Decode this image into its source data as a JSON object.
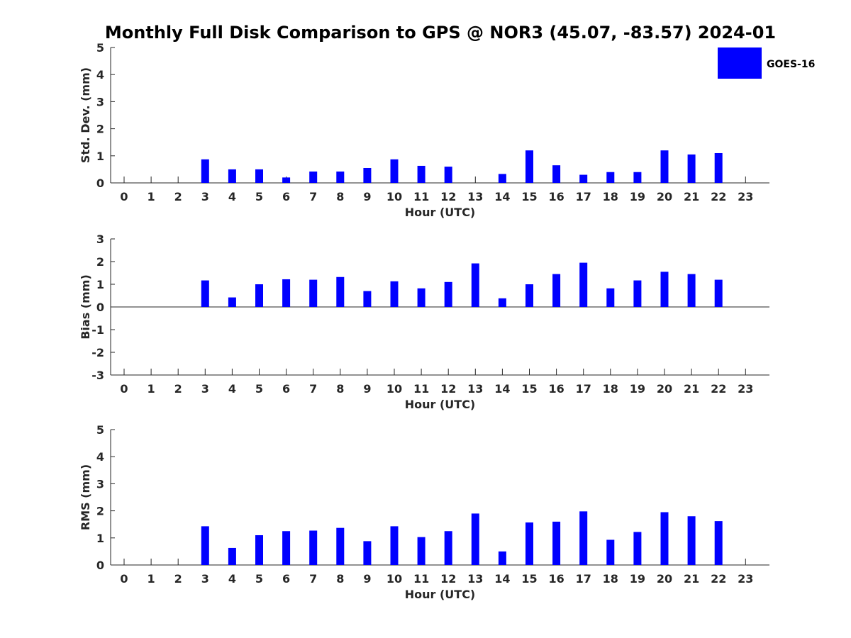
{
  "title": "Monthly Full Disk Comparison to GPS @ NOR3 (45.07, -83.57) 2024-01",
  "legend": {
    "label": "GOES-16",
    "color": "#0000ff"
  },
  "chart_data": [
    {
      "type": "bar",
      "categories": [
        "0",
        "1",
        "2",
        "3",
        "4",
        "5",
        "6",
        "7",
        "8",
        "9",
        "10",
        "11",
        "12",
        "13",
        "14",
        "15",
        "16",
        "17",
        "18",
        "19",
        "20",
        "21",
        "22",
        "23"
      ],
      "series": [
        {
          "name": "GOES-16",
          "values": [
            null,
            null,
            null,
            0.87,
            0.5,
            0.5,
            0.2,
            0.42,
            0.42,
            0.55,
            0.87,
            0.63,
            0.6,
            null,
            0.33,
            1.2,
            0.65,
            0.3,
            0.4,
            0.4,
            1.2,
            1.05,
            1.1,
            null
          ]
        }
      ],
      "xlabel": "Hour (UTC)",
      "ylabel": "Std. Dev. (mm)",
      "ylim": [
        0,
        5
      ],
      "yticks": [
        "0",
        "1",
        "2",
        "3",
        "4",
        "5"
      ],
      "grid": false,
      "legend_position": "top-right"
    },
    {
      "type": "bar",
      "categories": [
        "0",
        "1",
        "2",
        "3",
        "4",
        "5",
        "6",
        "7",
        "8",
        "9",
        "10",
        "11",
        "12",
        "13",
        "14",
        "15",
        "16",
        "17",
        "18",
        "19",
        "20",
        "21",
        "22",
        "23"
      ],
      "series": [
        {
          "name": "GOES-16",
          "values": [
            null,
            null,
            null,
            1.17,
            0.42,
            1.0,
            1.22,
            1.2,
            1.32,
            0.7,
            1.13,
            0.82,
            1.1,
            1.92,
            0.38,
            1.0,
            1.45,
            1.95,
            0.82,
            1.17,
            1.55,
            1.45,
            1.2,
            null
          ]
        }
      ],
      "xlabel": "Hour (UTC)",
      "ylabel": "Bias (mm)",
      "ylim": [
        -3,
        3
      ],
      "yticks": [
        "-3",
        "-2",
        "-1",
        "0",
        "1",
        "2",
        "3"
      ],
      "grid": false
    },
    {
      "type": "bar",
      "categories": [
        "0",
        "1",
        "2",
        "3",
        "4",
        "5",
        "6",
        "7",
        "8",
        "9",
        "10",
        "11",
        "12",
        "13",
        "14",
        "15",
        "16",
        "17",
        "18",
        "19",
        "20",
        "21",
        "22",
        "23"
      ],
      "series": [
        {
          "name": "GOES-16",
          "values": [
            null,
            null,
            null,
            1.43,
            0.63,
            1.1,
            1.25,
            1.27,
            1.37,
            0.88,
            1.43,
            1.03,
            1.25,
            1.9,
            0.5,
            1.57,
            1.6,
            1.98,
            0.93,
            1.22,
            1.95,
            1.8,
            1.62,
            null
          ]
        }
      ],
      "xlabel": "Hour (UTC)",
      "ylabel": "RMS (mm)",
      "ylim": [
        0,
        5
      ],
      "yticks": [
        "0",
        "1",
        "2",
        "3",
        "4",
        "5"
      ],
      "grid": false
    }
  ]
}
